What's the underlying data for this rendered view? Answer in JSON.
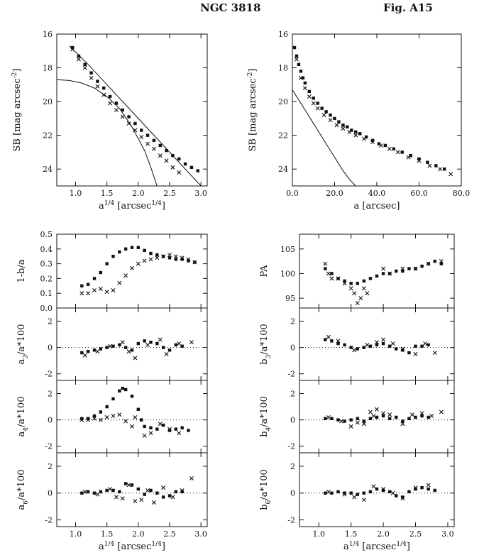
{
  "header": {
    "galaxy": "NGC 3818",
    "figure": "Fig. A15"
  },
  "chart_data": [
    {
      "id": "sb_r14",
      "type": "scatter",
      "xlabel": "a^{1/4} [arcsec^{1/4}]",
      "ylabel": "SB [mag arcsec^{-2}]",
      "xlim": [
        0.7,
        3.1
      ],
      "ylim": [
        16,
        25
      ],
      "y_inverted": true,
      "xticks": [
        "1.0",
        "1.5",
        "2.0",
        "2.5",
        "3.0"
      ],
      "yticks": [
        "16",
        "18",
        "20",
        "22",
        "24"
      ],
      "series": [
        {
          "marker": "square",
          "x": [
            0.95,
            1.05,
            1.15,
            1.25,
            1.35,
            1.45,
            1.55,
            1.65,
            1.75,
            1.85,
            1.95,
            2.05,
            2.15,
            2.25,
            2.35,
            2.45,
            2.55,
            2.65,
            2.75,
            2.85,
            2.95
          ],
          "y": [
            16.8,
            17.3,
            17.8,
            18.3,
            18.8,
            19.2,
            19.7,
            20.1,
            20.5,
            20.9,
            21.3,
            21.7,
            22.0,
            22.3,
            22.6,
            22.9,
            23.2,
            23.4,
            23.7,
            23.9,
            24.1
          ]
        },
        {
          "marker": "cross",
          "x": [
            0.95,
            1.05,
            1.15,
            1.25,
            1.35,
            1.45,
            1.55,
            1.65,
            1.75,
            1.85,
            1.95,
            2.05,
            2.15,
            2.25,
            2.35,
            2.45,
            2.55,
            2.65
          ],
          "y": [
            16.9,
            17.5,
            18.0,
            18.6,
            19.1,
            19.6,
            20.1,
            20.5,
            20.9,
            21.3,
            21.7,
            22.1,
            22.5,
            22.8,
            23.2,
            23.5,
            23.9,
            24.2
          ]
        },
        {
          "marker": "line",
          "x": [
            0.7,
            0.9,
            1.1,
            1.3,
            1.5,
            1.7,
            1.9,
            2.1,
            2.2,
            2.3
          ],
          "y": [
            18.7,
            18.75,
            18.9,
            19.2,
            19.7,
            20.4,
            21.5,
            22.9,
            23.9,
            25.0
          ]
        },
        {
          "marker": "line",
          "x": [
            0.9,
            1.2,
            1.5,
            1.8,
            2.1,
            2.4,
            2.7,
            3.0
          ],
          "y": [
            16.7,
            17.8,
            19.0,
            20.2,
            21.4,
            22.6,
            23.8,
            25.0
          ]
        }
      ]
    },
    {
      "id": "sb_lin",
      "type": "scatter",
      "xlabel": "a [arcsec]",
      "ylabel": "SB [mag arcsec^{-2}]",
      "xlim": [
        0,
        80
      ],
      "ylim": [
        16,
        25
      ],
      "y_inverted": true,
      "xticks": [
        "0.0",
        "20.0",
        "40.0",
        "60.0",
        "80.0"
      ],
      "yticks": [
        "16",
        "18",
        "20",
        "22",
        "24"
      ],
      "series": [
        {
          "marker": "square",
          "x": [
            1,
            2,
            3,
            4,
            5,
            6,
            8,
            10,
            12,
            14,
            16,
            18,
            20,
            22,
            24,
            26,
            28,
            30,
            32,
            35,
            38,
            41,
            44,
            48,
            52,
            56,
            60,
            64,
            68,
            72
          ],
          "y": [
            16.8,
            17.3,
            17.8,
            18.2,
            18.6,
            18.9,
            19.4,
            19.8,
            20.1,
            20.4,
            20.6,
            20.8,
            21.0,
            21.2,
            21.4,
            21.5,
            21.7,
            21.8,
            21.9,
            22.1,
            22.3,
            22.5,
            22.6,
            22.8,
            23.0,
            23.2,
            23.4,
            23.6,
            23.8,
            24.0
          ]
        },
        {
          "marker": "cross",
          "x": [
            2,
            4,
            6,
            8,
            10,
            12,
            15,
            18,
            21,
            24,
            27,
            30,
            34,
            38,
            42,
            46,
            50,
            55,
            60,
            65,
            70,
            75
          ],
          "y": [
            17.5,
            18.6,
            19.2,
            19.7,
            20.1,
            20.4,
            20.8,
            21.1,
            21.4,
            21.6,
            21.8,
            22.0,
            22.2,
            22.4,
            22.6,
            22.8,
            23.0,
            23.3,
            23.5,
            23.8,
            24.0,
            24.3
          ]
        },
        {
          "marker": "line",
          "x": [
            0,
            3,
            6,
            9,
            12,
            15,
            18,
            21,
            24,
            27,
            30
          ],
          "y": [
            19.3,
            19.9,
            20.5,
            21.1,
            21.7,
            22.3,
            22.9,
            23.5,
            24.1,
            24.6,
            25.0
          ]
        }
      ]
    },
    {
      "id": "ellip",
      "type": "scatter",
      "xlim": [
        0.7,
        3.1
      ],
      "ylim": [
        0.0,
        0.5
      ],
      "ylabel": "1-b/a",
      "yticks": [
        "0.0",
        "0.1",
        "0.2",
        "0.3",
        "0.4",
        "0.5"
      ],
      "series": [
        {
          "marker": "square",
          "x": [
            1.1,
            1.2,
            1.3,
            1.4,
            1.5,
            1.6,
            1.7,
            1.8,
            1.9,
            2.0,
            2.1,
            2.2,
            2.3,
            2.4,
            2.5,
            2.6,
            2.7,
            2.8,
            2.9
          ],
          "y": [
            0.15,
            0.16,
            0.2,
            0.24,
            0.3,
            0.35,
            0.38,
            0.4,
            0.41,
            0.41,
            0.39,
            0.37,
            0.36,
            0.35,
            0.34,
            0.33,
            0.33,
            0.32,
            0.31
          ]
        },
        {
          "marker": "cross",
          "x": [
            1.1,
            1.2,
            1.3,
            1.4,
            1.5,
            1.6,
            1.7,
            1.8,
            1.9,
            2.0,
            2.1,
            2.2,
            2.3,
            2.4,
            2.5,
            2.6,
            2.7,
            2.8,
            2.9
          ],
          "y": [
            0.1,
            0.1,
            0.12,
            0.13,
            0.11,
            0.12,
            0.17,
            0.22,
            0.27,
            0.3,
            0.32,
            0.33,
            0.34,
            0.35,
            0.36,
            0.35,
            0.34,
            0.33,
            0.31
          ]
        }
      ]
    },
    {
      "id": "pa",
      "type": "scatter",
      "xlim": [
        0.7,
        3.1
      ],
      "ylim": [
        93,
        108
      ],
      "ylabel": "PA",
      "yticks": [
        "95",
        "100",
        "105"
      ],
      "series": [
        {
          "marker": "square",
          "x": [
            1.1,
            1.2,
            1.3,
            1.4,
            1.5,
            1.6,
            1.7,
            1.8,
            1.9,
            2.0,
            2.1,
            2.2,
            2.3,
            2.4,
            2.5,
            2.6,
            2.7,
            2.8,
            2.9
          ],
          "y": [
            101,
            100,
            99,
            98.5,
            98,
            98,
            98.5,
            99,
            99.5,
            100,
            100,
            100.5,
            100.5,
            101,
            101,
            101.5,
            102,
            102.5,
            102
          ]
        },
        {
          "marker": "cross",
          "x": [
            1.1,
            1.15,
            1.2,
            1.3,
            1.4,
            1.5,
            1.55,
            1.6,
            1.65,
            1.7,
            1.75,
            2.0,
            2.1,
            2.3,
            2.5,
            2.7,
            2.9
          ],
          "y": [
            102,
            100,
            99,
            99,
            98,
            97,
            96,
            94,
            95,
            97,
            96,
            101,
            100,
            101,
            101,
            102,
            102.5
          ]
        }
      ]
    },
    {
      "id": "a3",
      "type": "scatter",
      "xlim": [
        0.7,
        3.1
      ],
      "ylim": [
        -2.5,
        3.0
      ],
      "ylabel": "a_3/a*100",
      "yticks": [
        "-2",
        "0",
        "2"
      ],
      "series": [
        {
          "marker": "square",
          "x": [
            1.1,
            1.2,
            1.3,
            1.4,
            1.5,
            1.6,
            1.7,
            1.8,
            1.9,
            2.0,
            2.1,
            2.2,
            2.3,
            2.4,
            2.5,
            2.6,
            2.7
          ],
          "y": [
            -0.4,
            -0.3,
            -0.2,
            -0.1,
            0.0,
            0.1,
            0.2,
            0.0,
            -0.2,
            0.3,
            0.5,
            0.4,
            0.3,
            0.0,
            -0.2,
            0.2,
            0.1
          ]
        },
        {
          "marker": "cross",
          "x": [
            1.15,
            1.35,
            1.55,
            1.75,
            1.85,
            1.95,
            2.15,
            2.35,
            2.45,
            2.65,
            2.85
          ],
          "y": [
            -0.6,
            -0.3,
            0.1,
            0.4,
            -0.3,
            -0.8,
            0.2,
            0.6,
            -0.5,
            0.3,
            0.4
          ]
        }
      ]
    },
    {
      "id": "b3",
      "type": "scatter",
      "xlim": [
        0.7,
        3.1
      ],
      "ylim": [
        -2.5,
        3.0
      ],
      "ylabel": "b_3/a*100",
      "yticks": [
        "-2",
        "0",
        "2"
      ],
      "series": [
        {
          "marker": "square",
          "x": [
            1.1,
            1.2,
            1.3,
            1.4,
            1.5,
            1.6,
            1.7,
            1.8,
            1.9,
            2.0,
            2.1,
            2.2,
            2.3,
            2.4,
            2.5,
            2.6,
            2.7
          ],
          "y": [
            0.6,
            0.5,
            0.3,
            0.2,
            0.0,
            -0.1,
            0.0,
            0.1,
            0.2,
            0.3,
            0.1,
            -0.1,
            -0.2,
            -0.4,
            0.1,
            0.1,
            0.2
          ]
        },
        {
          "marker": "cross",
          "x": [
            1.15,
            1.3,
            1.55,
            1.75,
            1.9,
            2.0,
            2.15,
            2.3,
            2.5,
            2.65,
            2.8
          ],
          "y": [
            0.8,
            0.5,
            -0.2,
            0.2,
            0.4,
            0.6,
            0.3,
            -0.1,
            -0.5,
            0.3,
            -0.4
          ]
        }
      ]
    },
    {
      "id": "a4",
      "type": "scatter",
      "xlim": [
        0.7,
        3.1
      ],
      "ylim": [
        -2.5,
        3.0
      ],
      "ylabel": "a_4/a*100",
      "yticks": [
        "-2",
        "0",
        "2"
      ],
      "series": [
        {
          "marker": "square",
          "x": [
            1.1,
            1.2,
            1.3,
            1.4,
            1.5,
            1.6,
            1.7,
            1.75,
            1.8,
            1.9,
            2.0,
            2.05,
            2.1,
            2.2,
            2.3,
            2.4,
            2.5,
            2.6,
            2.7,
            2.8
          ],
          "y": [
            0.1,
            0.1,
            0.3,
            0.6,
            1.0,
            1.6,
            2.2,
            2.4,
            2.3,
            1.8,
            0.8,
            0.0,
            -0.5,
            -0.6,
            -0.7,
            -0.4,
            -0.8,
            -0.7,
            -0.6,
            -0.8
          ]
        },
        {
          "marker": "cross",
          "x": [
            1.1,
            1.2,
            1.3,
            1.4,
            1.5,
            1.6,
            1.7,
            1.8,
            1.9,
            1.95,
            2.1,
            2.2,
            2.35,
            2.5,
            2.65
          ],
          "y": [
            0.0,
            0.0,
            0.1,
            0.0,
            0.2,
            0.3,
            0.4,
            -0.1,
            -0.5,
            0.2,
            -1.2,
            -1.0,
            -0.3,
            -0.7,
            -1.0
          ]
        }
      ]
    },
    {
      "id": "b4",
      "type": "scatter",
      "xlim": [
        0.7,
        3.1
      ],
      "ylim": [
        -2.5,
        3.0
      ],
      "ylabel": "b_4/a*100",
      "yticks": [
        "-2",
        "0",
        "2"
      ],
      "series": [
        {
          "marker": "square",
          "x": [
            1.1,
            1.2,
            1.3,
            1.4,
            1.5,
            1.6,
            1.7,
            1.8,
            1.9,
            2.0,
            2.1,
            2.2,
            2.3,
            2.4,
            2.5,
            2.6,
            2.7
          ],
          "y": [
            0.1,
            0.1,
            0.0,
            -0.1,
            0.0,
            0.1,
            -0.1,
            0.1,
            0.2,
            0.3,
            0.1,
            0.2,
            -0.1,
            0.1,
            0.2,
            0.3,
            0.2
          ]
        },
        {
          "marker": "cross",
          "x": [
            1.15,
            1.35,
            1.5,
            1.6,
            1.7,
            1.8,
            1.85,
            1.9,
            2.0,
            2.1,
            2.3,
            2.45,
            2.6,
            2.75,
            2.9
          ],
          "y": [
            0.2,
            -0.1,
            -0.5,
            -0.2,
            -0.3,
            0.6,
            0.3,
            0.8,
            0.5,
            0.4,
            -0.3,
            0.4,
            0.5,
            0.3,
            0.6
          ]
        }
      ]
    },
    {
      "id": "a6",
      "type": "scatter",
      "xlim": [
        0.7,
        3.1
      ],
      "ylim": [
        -2.5,
        3.0
      ],
      "ylabel": "a_6/a*100",
      "yticks": [
        "-2",
        "0",
        "2"
      ],
      "xlabel": "a^{1/4} [arcsec^{1/4}]",
      "xticks": [
        "1.0",
        "1.5",
        "2.0",
        "2.5",
        "3.0"
      ],
      "series": [
        {
          "marker": "square",
          "x": [
            1.1,
            1.2,
            1.3,
            1.4,
            1.5,
            1.6,
            1.7,
            1.8,
            1.9,
            2.0,
            2.1,
            2.2,
            2.3,
            2.4,
            2.5,
            2.6,
            2.7
          ],
          "y": [
            0.0,
            0.1,
            0.0,
            0.1,
            0.2,
            0.2,
            0.1,
            0.7,
            0.6,
            0.3,
            -0.1,
            0.2,
            0.0,
            -0.3,
            -0.2,
            0.1,
            0.1
          ]
        },
        {
          "marker": "cross",
          "x": [
            1.15,
            1.35,
            1.55,
            1.65,
            1.75,
            1.85,
            1.95,
            2.05,
            2.15,
            2.25,
            2.4,
            2.55,
            2.7,
            2.85
          ],
          "y": [
            0.1,
            -0.1,
            0.3,
            -0.3,
            -0.4,
            0.6,
            -0.6,
            -0.5,
            0.2,
            -0.7,
            0.4,
            -0.3,
            0.2,
            1.1
          ]
        }
      ]
    },
    {
      "id": "b6",
      "type": "scatter",
      "xlim": [
        0.7,
        3.1
      ],
      "ylim": [
        -2.5,
        3.0
      ],
      "ylabel": "b_6/a*100",
      "yticks": [
        "-2",
        "0",
        "2"
      ],
      "xlabel": "a^{1/4} [arcsec^{1/4}]",
      "xticks": [
        "1.0",
        "1.5",
        "2.0",
        "2.5",
        "3.0"
      ],
      "series": [
        {
          "marker": "square",
          "x": [
            1.1,
            1.2,
            1.3,
            1.4,
            1.5,
            1.6,
            1.7,
            1.8,
            1.9,
            2.0,
            2.1,
            2.2,
            2.3,
            2.4,
            2.5,
            2.6,
            2.7,
            2.8
          ],
          "y": [
            0.0,
            0.0,
            0.1,
            0.0,
            0.0,
            -0.1,
            0.0,
            0.1,
            0.3,
            0.2,
            0.1,
            -0.2,
            -0.3,
            0.1,
            0.3,
            0.4,
            0.3,
            0.2
          ]
        },
        {
          "marker": "cross",
          "x": [
            1.15,
            1.4,
            1.55,
            1.7,
            1.85,
            2.0,
            2.15,
            2.3,
            2.5,
            2.7
          ],
          "y": [
            0.1,
            -0.1,
            -0.3,
            -0.5,
            0.5,
            0.3,
            0.0,
            -0.4,
            0.4,
            0.6
          ]
        }
      ]
    }
  ]
}
